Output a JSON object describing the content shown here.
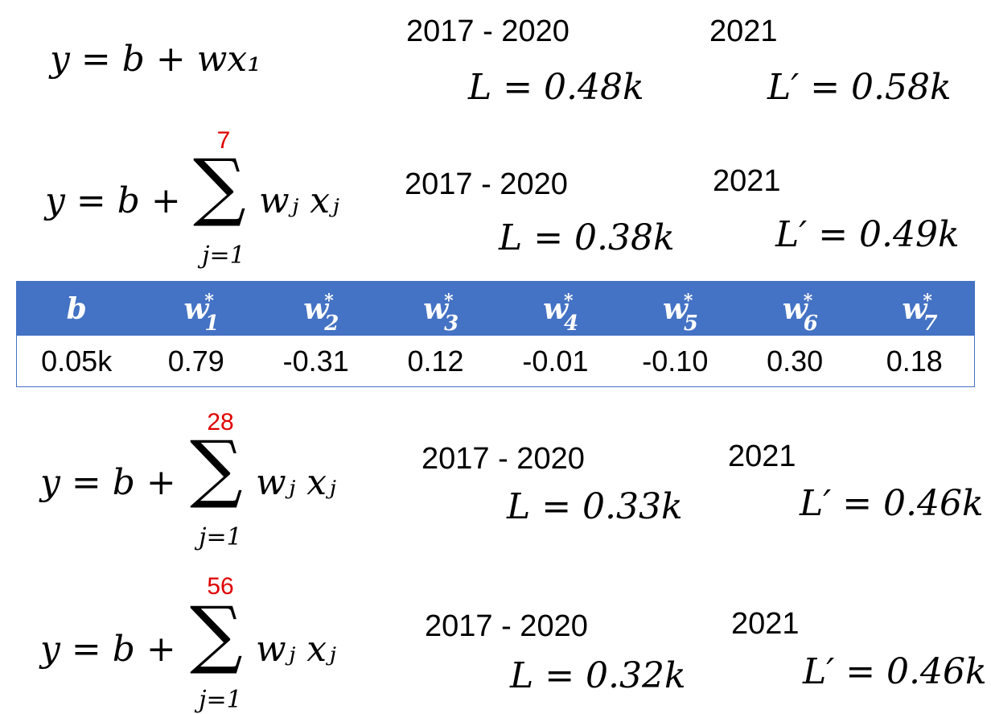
{
  "rows": [
    {
      "formula": "y = b + wx₁",
      "range_label": "2017 - 2020",
      "year_label": "2021",
      "loss_train": "L = 0.48k",
      "loss_test": "L′ = 0.58k"
    },
    {
      "formula_lhs": "y = b +",
      "sum_upper": "7",
      "sum_lower": "j=1",
      "summand": "wⱼ xⱼ",
      "range_label": "2017 - 2020",
      "year_label": "2021",
      "loss_train": "L = 0.38k",
      "loss_test": "L′ = 0.49k"
    },
    {
      "formula_lhs": "y = b +",
      "sum_upper": "28",
      "sum_lower": "j=1",
      "summand": "wⱼ xⱼ",
      "range_label": "2017 - 2020",
      "year_label": "2021",
      "loss_train": "L = 0.33k",
      "loss_test": "L′ = 0.46k"
    },
    {
      "formula_lhs": "y = b +",
      "sum_upper": "56",
      "sum_lower": "j=1",
      "summand": "wⱼ xⱼ",
      "range_label": "2017 - 2020",
      "year_label": "2021",
      "loss_train": "L = 0.32k",
      "loss_test": "L′ = 0.46k"
    }
  ],
  "table": {
    "header_color": "#4472c4",
    "headers": [
      "b",
      "w",
      "w",
      "w",
      "w",
      "w",
      "w",
      "w"
    ],
    "header_subs": [
      "",
      "1",
      "2",
      "3",
      "4",
      "5",
      "6",
      "7"
    ],
    "header_sup": "*",
    "values": [
      "0.05k",
      "0.79",
      "-0.31",
      "0.12",
      "-0.01",
      "-0.10",
      "0.30",
      "0.18"
    ]
  },
  "accent_color": "#e00000"
}
